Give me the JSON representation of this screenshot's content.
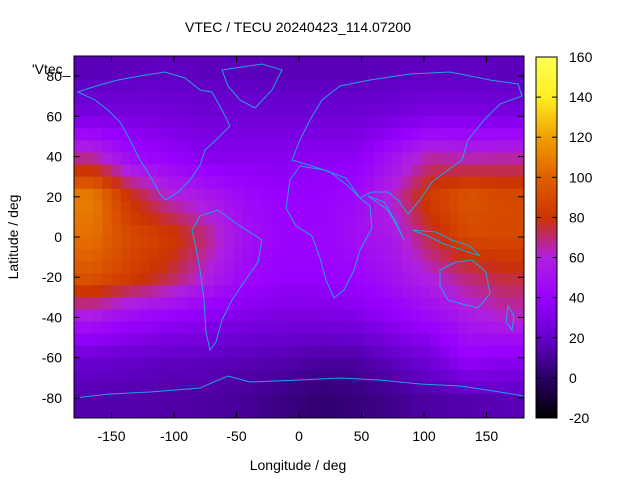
{
  "chart_data": {
    "type": "heatmap",
    "title": "VTEC / TECU 20240423_114.07200",
    "xlabel": "Longitude / deg",
    "ylabel": "Latitude / deg",
    "xlim": [
      -180,
      180
    ],
    "ylim": [
      -90,
      90
    ],
    "x_ticks": [
      "-150",
      "-100",
      "-50",
      "0",
      "50",
      "100",
      "150"
    ],
    "y_ticks": [
      "-80",
      "-60",
      "-40",
      "-20",
      "0",
      "20",
      "40",
      "60",
      "80"
    ],
    "colorbar": {
      "range": [
        -20,
        160
      ],
      "ticks": [
        "-20",
        "0",
        "20",
        "40",
        "60",
        "80",
        "100",
        "120",
        "140",
        "160"
      ],
      "colormap": [
        "#000000",
        "#2a0066",
        "#6600cc",
        "#9900ff",
        "#b020e0",
        "#cc3300",
        "#e06000",
        "#f0a000",
        "#ffee22",
        "#ffff55"
      ]
    },
    "legend_key": "'Vtec_",
    "coastline_color": "#1fa2e0",
    "lon_centers": [
      -165,
      -135,
      -105,
      -75,
      -45,
      -15,
      15,
      45,
      75,
      105,
      135,
      165
    ],
    "lat_centers": [
      80,
      60,
      40,
      20,
      0,
      -20,
      -40,
      -60,
      -80
    ],
    "values": [
      [
        16,
        17,
        18,
        17,
        17,
        16,
        16,
        16,
        17,
        18,
        18,
        17
      ],
      [
        28,
        28,
        26,
        24,
        24,
        24,
        24,
        24,
        26,
        30,
        30,
        28
      ],
      [
        65,
        45,
        40,
        33,
        33,
        33,
        35,
        35,
        50,
        65,
        62,
        64
      ],
      [
        110,
        80,
        62,
        55,
        45,
        40,
        40,
        45,
        62,
        85,
        95,
        90
      ],
      [
        105,
        90,
        85,
        70,
        50,
        42,
        42,
        48,
        55,
        75,
        90,
        90
      ],
      [
        95,
        85,
        75,
        60,
        45,
        40,
        40,
        42,
        50,
        60,
        70,
        75
      ],
      [
        55,
        45,
        40,
        35,
        30,
        28,
        28,
        30,
        38,
        45,
        55,
        62
      ],
      [
        22,
        20,
        18,
        18,
        16,
        15,
        12,
        12,
        18,
        25,
        40,
        35
      ],
      [
        14,
        14,
        13,
        12,
        10,
        6,
        2,
        4,
        8,
        12,
        14,
        16
      ]
    ]
  }
}
